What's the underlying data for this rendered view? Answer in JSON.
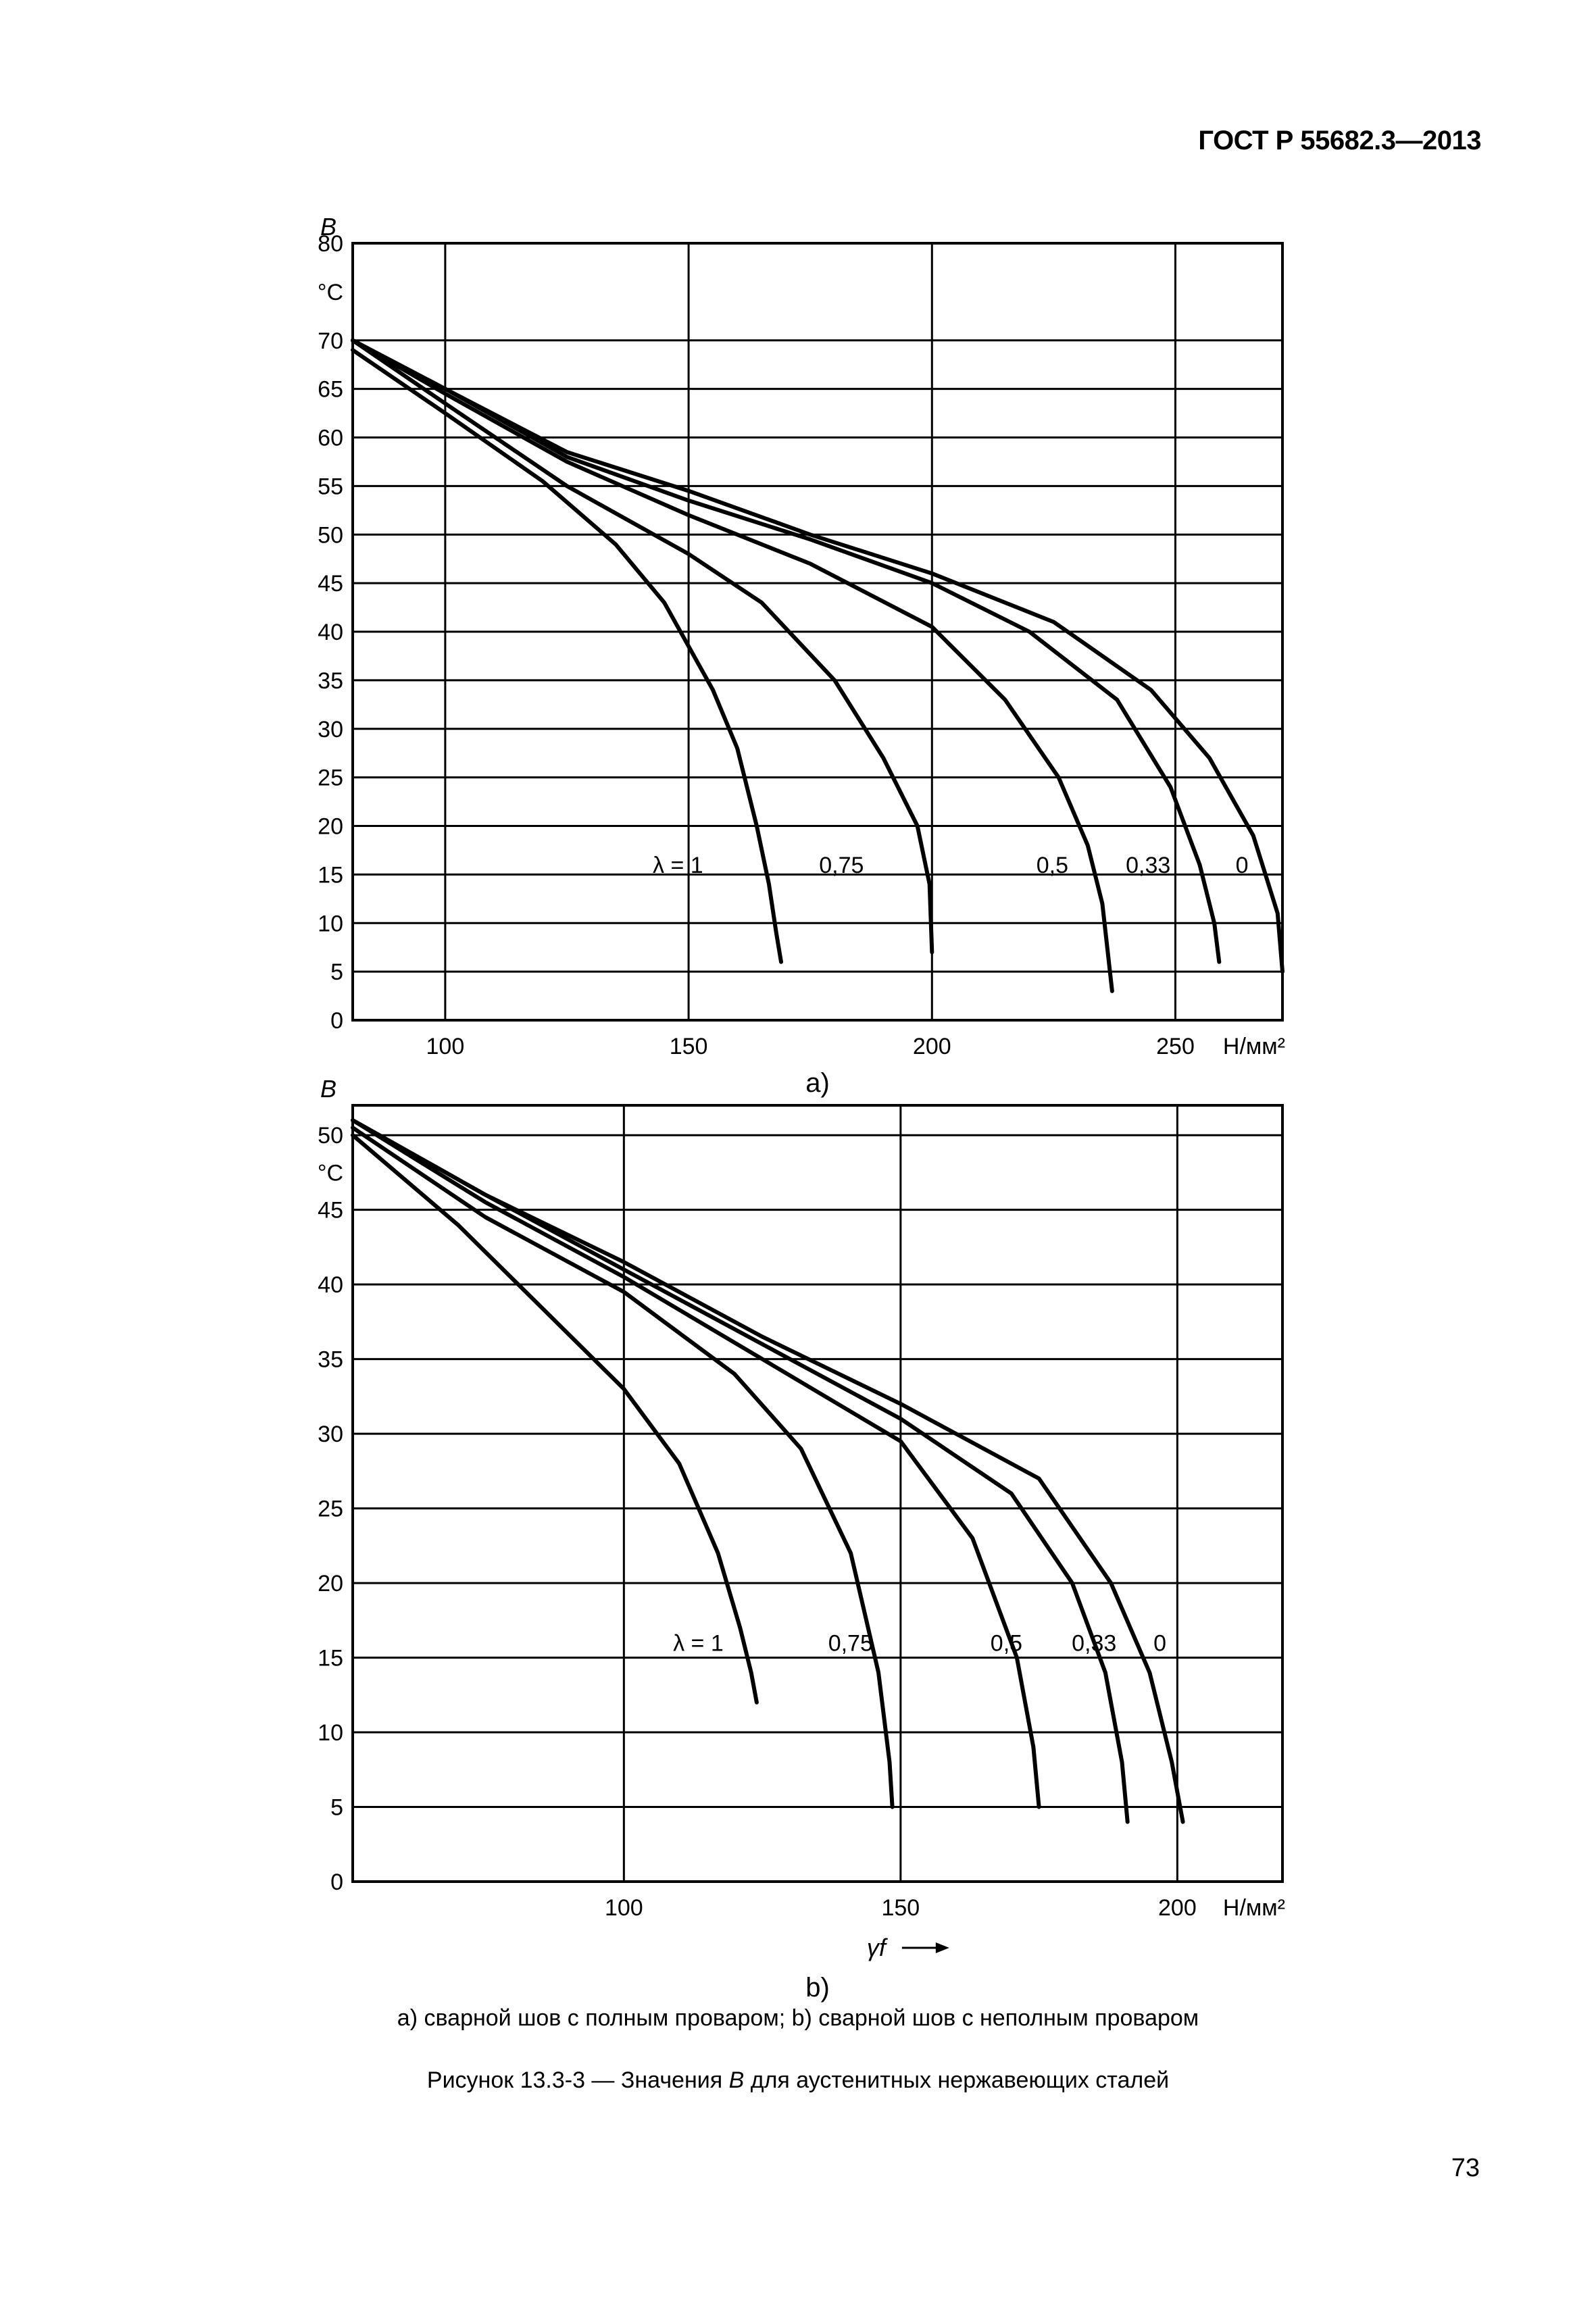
{
  "header": {
    "standard": "ГОСТ Р 55682.3—2013"
  },
  "page_number": "73",
  "caption": {
    "subtitle": "a) сварной шов с полным проваром; b) сварной шов с неполным проваром",
    "title_prefix": "Рисунок 13.3-3 — Значения ",
    "title_var": "B",
    "title_suffix": " для аустенитных нержавеющих сталей"
  },
  "chart_data": [
    {
      "type": "line",
      "panel_label": "a)",
      "ylabel": "B",
      "yunit": "°C",
      "xunit": "Н/мм²",
      "xlim": [
        81,
        272
      ],
      "ylim": [
        0,
        80
      ],
      "xticks": [
        100,
        150,
        200,
        250
      ],
      "yticks": [
        0,
        5,
        10,
        15,
        20,
        25,
        30,
        35,
        40,
        45,
        50,
        55,
        60,
        65,
        70,
        80
      ],
      "grid": true,
      "series": [
        {
          "name": "λ = 1",
          "points": [
            [
              81,
              69
            ],
            [
              100,
              62.5
            ],
            [
              120,
              55.5
            ],
            [
              135,
              49
            ],
            [
              145,
              43
            ],
            [
              155,
              34
            ],
            [
              160,
              28
            ],
            [
              164,
              20
            ],
            [
              166.5,
              14
            ],
            [
              168,
              9
            ],
            [
              169,
              6
            ]
          ],
          "label_at": [
            153,
            16
          ]
        },
        {
          "name": "0,75",
          "points": [
            [
              81,
              70
            ],
            [
              100,
              63.5
            ],
            [
              125,
              55
            ],
            [
              150,
              48
            ],
            [
              165,
              43
            ],
            [
              180,
              35
            ],
            [
              190,
              27
            ],
            [
              197,
              20
            ],
            [
              199.5,
              14
            ],
            [
              200,
              7
            ]
          ],
          "label_at": [
            186,
            16
          ]
        },
        {
          "name": "0,5",
          "points": [
            [
              81,
              70
            ],
            [
              100,
              64.5
            ],
            [
              125,
              57.5
            ],
            [
              150,
              52
            ],
            [
              175,
              47
            ],
            [
              200,
              40.5
            ],
            [
              215,
              33
            ],
            [
              226,
              25
            ],
            [
              232,
              18
            ],
            [
              235,
              12
            ],
            [
              237,
              3
            ]
          ],
          "label_at": [
            228,
            16
          ]
        },
        {
          "name": "0,33",
          "points": [
            [
              81,
              70
            ],
            [
              100,
              65
            ],
            [
              125,
              58
            ],
            [
              150,
              53.5
            ],
            [
              175,
              49.5
            ],
            [
              200,
              45
            ],
            [
              220,
              40
            ],
            [
              238,
              33
            ],
            [
              249,
              24
            ],
            [
              255,
              16
            ],
            [
              258,
              10
            ],
            [
              259,
              6
            ]
          ],
          "label_at": [
            249,
            16
          ]
        },
        {
          "name": "0",
          "points": [
            [
              81,
              70
            ],
            [
              100,
              65
            ],
            [
              125,
              58.5
            ],
            [
              150,
              54.5
            ],
            [
              175,
              50
            ],
            [
              200,
              46
            ],
            [
              225,
              41
            ],
            [
              245,
              34
            ],
            [
              257,
              27
            ],
            [
              266,
              19
            ],
            [
              271,
              11
            ],
            [
              272,
              5
            ]
          ],
          "label_at": [
            265,
            16
          ]
        }
      ]
    },
    {
      "type": "line",
      "panel_label": "b)",
      "ylabel": "B",
      "yunit": "°C",
      "xunit": "Н/мм²",
      "xaxis_symbol": "γf",
      "xlim": [
        51,
        219
      ],
      "ylim": [
        0,
        52
      ],
      "xticks": [
        100,
        150,
        200
      ],
      "yticks": [
        0,
        5,
        10,
        15,
        20,
        25,
        30,
        35,
        40,
        45,
        50
      ],
      "grid": true,
      "series": [
        {
          "name": "λ = 1",
          "points": [
            [
              51,
              50
            ],
            [
              70,
              44
            ],
            [
              85,
              38.5
            ],
            [
              100,
              33
            ],
            [
              110,
              28
            ],
            [
              117,
              22
            ],
            [
              121,
              17
            ],
            [
              123,
              14
            ],
            [
              124,
              12
            ]
          ],
          "label_at": [
            118,
            16
          ]
        },
        {
          "name": "0,75",
          "points": [
            [
              51,
              50.5
            ],
            [
              75,
              44.5
            ],
            [
              100,
              39.5
            ],
            [
              120,
              34
            ],
            [
              132,
              29
            ],
            [
              141,
              22
            ],
            [
              146,
              14
            ],
            [
              148,
              8
            ],
            [
              148.5,
              5
            ]
          ],
          "label_at": [
            145,
            16
          ]
        },
        {
          "name": "0,5",
          "points": [
            [
              51,
              51
            ],
            [
              75,
              45.5
            ],
            [
              100,
              40.5
            ],
            [
              125,
              35
            ],
            [
              150,
              29.5
            ],
            [
              163,
              23
            ],
            [
              171,
              15
            ],
            [
              174,
              9
            ],
            [
              175,
              5
            ]
          ],
          "label_at": [
            172,
            16
          ]
        },
        {
          "name": "0,33",
          "points": [
            [
              51,
              51
            ],
            [
              75,
              46
            ],
            [
              100,
              41
            ],
            [
              125,
              36
            ],
            [
              150,
              31
            ],
            [
              170,
              26
            ],
            [
              181,
              20
            ],
            [
              187,
              14
            ],
            [
              190,
              8
            ],
            [
              191,
              4
            ]
          ],
          "label_at": [
            189,
            16
          ]
        },
        {
          "name": "0",
          "points": [
            [
              51,
              51
            ],
            [
              75,
              46
            ],
            [
              100,
              41.5
            ],
            [
              125,
              36.5
            ],
            [
              150,
              32
            ],
            [
              175,
              27
            ],
            [
              188,
              20
            ],
            [
              195,
              14
            ],
            [
              199,
              8
            ],
            [
              201,
              4
            ]
          ],
          "label_at": [
            198,
            16
          ]
        }
      ]
    }
  ]
}
